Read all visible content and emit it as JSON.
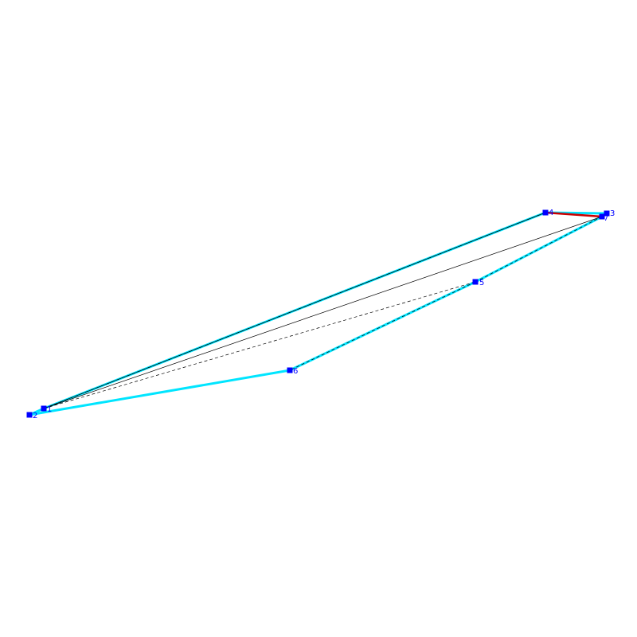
{
  "colors": {
    "background": "#ffffff",
    "hull_edge": "#00e5ff",
    "highlight_edge": "#cc0000",
    "inner_solid": "#000000",
    "inner_dashed": "#000000",
    "node_fill": "#0000ff",
    "label": "#0000ff"
  },
  "nodes": [
    {
      "id": "1",
      "label": "1"
    },
    {
      "id": "2",
      "label": "2"
    },
    {
      "id": "3",
      "label": "3"
    },
    {
      "id": "4",
      "label": "4"
    },
    {
      "id": "5",
      "label": "5"
    },
    {
      "id": "6",
      "label": "6"
    },
    {
      "id": "7",
      "label": "7"
    }
  ],
  "edges": {
    "hull": [
      [
        "1",
        "4"
      ],
      [
        "4",
        "3"
      ],
      [
        "3",
        "7"
      ],
      [
        "7",
        "5"
      ],
      [
        "5",
        "6"
      ],
      [
        "6",
        "2"
      ],
      [
        "2",
        "1"
      ]
    ],
    "highlight": [
      [
        "4",
        "7"
      ]
    ],
    "inner_solid": [
      [
        "1",
        "7"
      ],
      [
        "1",
        "4"
      ]
    ],
    "inner_dashed": [
      [
        "1",
        "5"
      ],
      [
        "1",
        "4"
      ],
      [
        "5",
        "6"
      ],
      [
        "7",
        "5"
      ]
    ]
  }
}
